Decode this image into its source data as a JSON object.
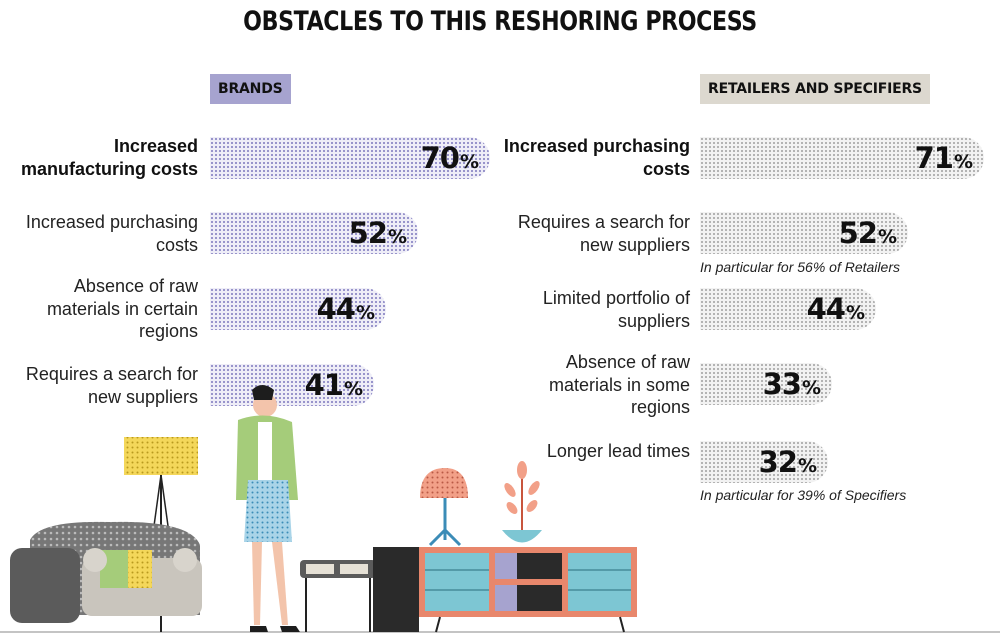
{
  "title": "OBSTACLES TO THIS RESHORING PROCESS",
  "chart_data": [
    {
      "type": "bar",
      "title": "BRANDS",
      "categories": [
        "Increased manufacturing costs",
        "Increased purchasing costs",
        "Absence of raw materials in certain regions",
        "Requires a search for new suppliers"
      ],
      "values": [
        70,
        52,
        44,
        41
      ],
      "unit": "%",
      "color": "#8a86c4",
      "xlim": [
        0,
        100
      ]
    },
    {
      "type": "bar",
      "title": "RETAILERS AND SPECIFIERS",
      "categories": [
        "Increased purchasing costs",
        "Requires a search for new suppliers",
        "Limited portfolio of suppliers",
        "Absence of raw materials in some regions",
        "Longer lead times"
      ],
      "values": [
        71,
        52,
        44,
        33,
        32
      ],
      "unit": "%",
      "color": "#a9a9a9",
      "notes": [
        "In particular for 56% of Retailers",
        "In particular for 39% of Specifiers"
      ],
      "xlim": [
        0,
        100
      ]
    }
  ]
}
